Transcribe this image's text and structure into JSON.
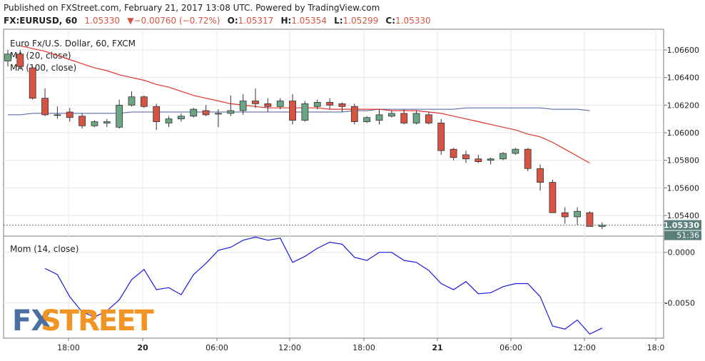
{
  "header": {
    "line1": "Published on FXStreet.com, February 21, 2017 13:08 UTC. Powered by TradingView.com",
    "symbol": "FX:EURUSD, 60",
    "last": "1.05330",
    "change": "▼−0.00760 (−0.72%)",
    "o_label": "O:",
    "o": "1.05317",
    "h_label": "H:",
    "h": "1.05354",
    "l_label": "L:",
    "l": "1.05299",
    "c_label": "C:",
    "c": "1.05330"
  },
  "colors": {
    "up": "#6ba583",
    "down": "#d75442",
    "ma20": "#e3332b",
    "ma100": "#4a5a9c",
    "momentum": "#1a1ae0",
    "last_price": "#5a7e7a",
    "logo_fx": "#4a6fa0",
    "logo_street": "#f29423"
  },
  "logo": {
    "fx": "FX",
    "street": "STREET"
  },
  "chart_data": [
    {
      "type": "candlestick",
      "title": "Euro Fx/U.S. Dollar, 60, FXCM",
      "legend": [
        "MA (20, close)",
        "MA (100, close)"
      ],
      "ylim": [
        1.0525,
        1.0675
      ],
      "yticks": [
        1.054,
        1.056,
        1.058,
        1.06,
        1.062,
        1.064,
        1.066
      ],
      "ytick_labels": [
        "1.05400",
        "1.05600",
        "1.05800",
        "1.06000",
        "1.06200",
        "1.06400",
        "1.06600"
      ],
      "last_label": "1.05330",
      "countdown": "51:36",
      "x_labels": [
        "18:00",
        "20",
        "06:00",
        "12:00",
        "18:00",
        "21",
        "06:00",
        "12:00",
        "18:0"
      ],
      "candles": [
        {
          "o": 1.0652,
          "h": 1.066,
          "l": 1.0648,
          "c": 1.0657
        },
        {
          "o": 1.0657,
          "h": 1.066,
          "l": 1.0646,
          "c": 1.0648
        },
        {
          "o": 1.0647,
          "h": 1.0648,
          "l": 1.0624,
          "c": 1.0625
        },
        {
          "o": 1.0625,
          "h": 1.0632,
          "l": 1.0612,
          "c": 1.0613
        },
        {
          "o": 1.0613,
          "h": 1.0619,
          "l": 1.061,
          "c": 1.0613
        },
        {
          "o": 1.0615,
          "h": 1.0618,
          "l": 1.0608,
          "c": 1.0611
        },
        {
          "o": 1.0612,
          "h": 1.0614,
          "l": 1.0603,
          "c": 1.0605
        },
        {
          "o": 1.0605,
          "h": 1.0609,
          "l": 1.0604,
          "c": 1.0608
        },
        {
          "o": 1.0607,
          "h": 1.061,
          "l": 1.0604,
          "c": 1.0608
        },
        {
          "o": 1.0604,
          "h": 1.0624,
          "l": 1.0603,
          "c": 1.062
        },
        {
          "o": 1.062,
          "h": 1.063,
          "l": 1.0619,
          "c": 1.0626
        },
        {
          "o": 1.0626,
          "h": 1.0627,
          "l": 1.0618,
          "c": 1.0619
        },
        {
          "o": 1.0619,
          "h": 1.0621,
          "l": 1.0602,
          "c": 1.0608
        },
        {
          "o": 1.0607,
          "h": 1.0612,
          "l": 1.0604,
          "c": 1.061
        },
        {
          "o": 1.061,
          "h": 1.0614,
          "l": 1.0608,
          "c": 1.0612
        },
        {
          "o": 1.0612,
          "h": 1.0618,
          "l": 1.0611,
          "c": 1.0617
        },
        {
          "o": 1.0616,
          "h": 1.062,
          "l": 1.0612,
          "c": 1.0613
        },
        {
          "o": 1.0614,
          "h": 1.0617,
          "l": 1.0604,
          "c": 1.0614
        },
        {
          "o": 1.0614,
          "h": 1.0627,
          "l": 1.0612,
          "c": 1.0616
        },
        {
          "o": 1.0616,
          "h": 1.0628,
          "l": 1.0613,
          "c": 1.0623
        },
        {
          "o": 1.0623,
          "h": 1.0632,
          "l": 1.0618,
          "c": 1.0621
        },
        {
          "o": 1.0621,
          "h": 1.0625,
          "l": 1.0615,
          "c": 1.0619
        },
        {
          "o": 1.0619,
          "h": 1.0625,
          "l": 1.0617,
          "c": 1.0623
        },
        {
          "o": 1.0623,
          "h": 1.0628,
          "l": 1.0606,
          "c": 1.0609
        },
        {
          "o": 1.0609,
          "h": 1.0623,
          "l": 1.0608,
          "c": 1.0621
        },
        {
          "o": 1.0619,
          "h": 1.0624,
          "l": 1.0617,
          "c": 1.0622
        },
        {
          "o": 1.0622,
          "h": 1.0625,
          "l": 1.0617,
          "c": 1.062
        },
        {
          "o": 1.0621,
          "h": 1.0622,
          "l": 1.0615,
          "c": 1.0619
        },
        {
          "o": 1.0619,
          "h": 1.0621,
          "l": 1.0606,
          "c": 1.0608
        },
        {
          "o": 1.0608,
          "h": 1.0612,
          "l": 1.0607,
          "c": 1.0611
        },
        {
          "o": 1.0609,
          "h": 1.0617,
          "l": 1.0606,
          "c": 1.0613
        },
        {
          "o": 1.0612,
          "h": 1.0616,
          "l": 1.0611,
          "c": 1.0614
        },
        {
          "o": 1.0614,
          "h": 1.0617,
          "l": 1.0606,
          "c": 1.0607
        },
        {
          "o": 1.0607,
          "h": 1.0616,
          "l": 1.0606,
          "c": 1.0614
        },
        {
          "o": 1.0613,
          "h": 1.0615,
          "l": 1.0606,
          "c": 1.0607
        },
        {
          "o": 1.0607,
          "h": 1.061,
          "l": 1.0584,
          "c": 1.0587
        },
        {
          "o": 1.0588,
          "h": 1.0589,
          "l": 1.058,
          "c": 1.0582
        },
        {
          "o": 1.0584,
          "h": 1.0587,
          "l": 1.0578,
          "c": 1.0581
        },
        {
          "o": 1.0581,
          "h": 1.0584,
          "l": 1.0578,
          "c": 1.0579
        },
        {
          "o": 1.058,
          "h": 1.0582,
          "l": 1.0577,
          "c": 1.0581
        },
        {
          "o": 1.0581,
          "h": 1.0586,
          "l": 1.058,
          "c": 1.0585
        },
        {
          "o": 1.0585,
          "h": 1.0589,
          "l": 1.0584,
          "c": 1.0588
        },
        {
          "o": 1.0588,
          "h": 1.0589,
          "l": 1.0572,
          "c": 1.0574
        },
        {
          "o": 1.0574,
          "h": 1.0577,
          "l": 1.0558,
          "c": 1.0564
        },
        {
          "o": 1.0564,
          "h": 1.0566,
          "l": 1.0542,
          "c": 1.0542
        },
        {
          "o": 1.0542,
          "h": 1.0546,
          "l": 1.0534,
          "c": 1.0539
        },
        {
          "o": 1.0539,
          "h": 1.0546,
          "l": 1.0533,
          "c": 1.0543
        },
        {
          "o": 1.0542,
          "h": 1.0543,
          "l": 1.0532,
          "c": 1.0532
        },
        {
          "o": 1.0532,
          "h": 1.0535,
          "l": 1.053,
          "c": 1.0533
        }
      ],
      "ma20": [
        1.0663,
        1.0661,
        1.0659,
        1.0656,
        1.0653,
        1.065,
        1.0647,
        1.0645,
        1.0642,
        1.064,
        1.0638,
        1.0635,
        1.0633,
        1.063,
        1.0627,
        1.0625,
        1.0623,
        1.0621,
        1.062,
        1.0619,
        1.0618,
        1.0618,
        1.0618,
        1.0618,
        1.0618,
        1.0617,
        1.0617,
        1.0617,
        1.0617,
        1.0617,
        1.0616,
        1.0616,
        1.0616,
        1.0615,
        1.0614,
        1.0612,
        1.061,
        1.0608,
        1.0606,
        1.0604,
        1.0602,
        1.0599,
        1.0597,
        1.0593,
        1.0588,
        1.0583,
        1.0578
      ],
      "ma100": [
        1.0613,
        1.0613,
        1.0614,
        1.0614,
        1.0614,
        1.0614,
        1.0614,
        1.0614,
        1.0614,
        1.0614,
        1.0615,
        1.0615,
        1.0615,
        1.0615,
        1.0615,
        1.0615,
        1.0615,
        1.0615,
        1.0615,
        1.0615,
        1.0615,
        1.0615,
        1.0615,
        1.0615,
        1.0615,
        1.0615,
        1.0615,
        1.0615,
        1.0616,
        1.0616,
        1.0617,
        1.0617,
        1.0617,
        1.0617,
        1.0617,
        1.0617,
        1.0617,
        1.0618,
        1.0618,
        1.0618,
        1.0618,
        1.0618,
        1.0618,
        1.0618,
        1.0617,
        1.0617,
        1.0617,
        1.0616
      ]
    },
    {
      "type": "line",
      "title": "Mom (14, close)",
      "ylim": [
        -0.0085,
        0.0016
      ],
      "ytick_labels": [
        "0.0000",
        "-0.0050"
      ],
      "yticks": [
        0.0,
        -0.005
      ],
      "values": [
        -0.0016,
        -0.0022,
        -0.0044,
        -0.0059,
        -0.0064,
        -0.0058,
        -0.0047,
        -0.0027,
        -0.0017,
        -0.0037,
        -0.0035,
        -0.0042,
        -0.0022,
        -0.0011,
        0.0002,
        0.0005,
        0.0012,
        0.0015,
        0.0012,
        0.0014,
        -0.001,
        -0.0004,
        0.0004,
        0.001,
        0.0008,
        -0.0005,
        -0.0008,
        0.0,
        0.0,
        -0.0008,
        -0.001,
        -0.0018,
        -0.0031,
        -0.0037,
        -0.0029,
        -0.0041,
        -0.004,
        -0.0034,
        -0.0031,
        -0.0031,
        -0.0044,
        -0.0073,
        -0.0076,
        -0.0067,
        -0.0081,
        -0.0075
      ]
    }
  ]
}
